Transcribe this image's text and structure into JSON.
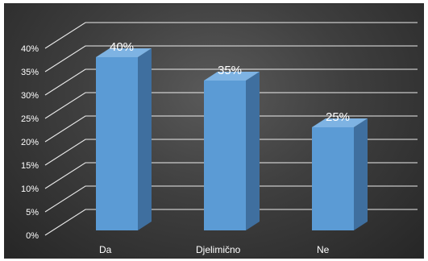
{
  "chart_data": {
    "type": "bar",
    "categories": [
      "Da",
      "Djelimično",
      "Ne"
    ],
    "values": [
      40,
      35,
      25
    ],
    "data_labels": [
      "40%",
      "35%",
      "25%"
    ],
    "y_ticks": [
      "0%",
      "5%",
      "10%",
      "15%",
      "20%",
      "25%",
      "30%",
      "35%",
      "40%"
    ],
    "ylim": [
      0,
      40
    ],
    "grid": true,
    "legend": "none",
    "three_d": true,
    "colors": {
      "bar_front": "#5b9bd5",
      "bar_side": "#3f6f9f",
      "bar_top": "#7eb3e3",
      "grid": "#ffffff",
      "text": "#ffffff"
    }
  }
}
